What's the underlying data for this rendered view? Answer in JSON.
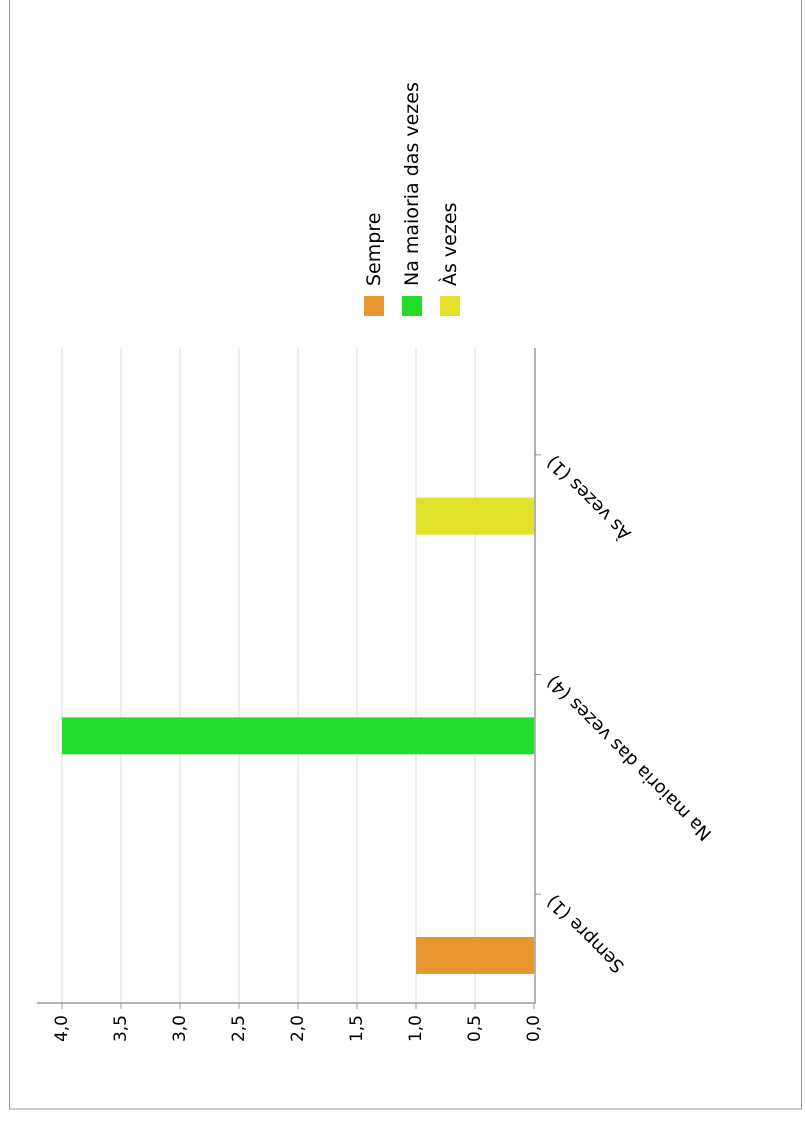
{
  "chart_data": {
    "type": "bar",
    "orientation": "rotated",
    "categories": [
      "Sempre (1)",
      "Na maioria das vezes (4)",
      "Às vezes (1)"
    ],
    "values": [
      1,
      4,
      1
    ],
    "colors": [
      "#e8962e",
      "#22dd2c",
      "#e2e22b"
    ],
    "ylim": [
      0,
      4
    ],
    "yticks": [
      "0,0",
      "0,5",
      "1,0",
      "1,5",
      "2,0",
      "2,5",
      "3,0",
      "3,5",
      "4,0"
    ],
    "legend": {
      "placement": "top",
      "items": [
        {
          "label": "Sempre",
          "color": "#e8962e"
        },
        {
          "label": "Na maioria das vezes",
          "color": "#22dd2c"
        },
        {
          "label": "Às vezes",
          "color": "#e2e22b"
        }
      ]
    },
    "grid": true,
    "grid_color": "#dcdcdc",
    "axis_color": "#999999",
    "title": "",
    "xlabel": "",
    "ylabel": ""
  }
}
